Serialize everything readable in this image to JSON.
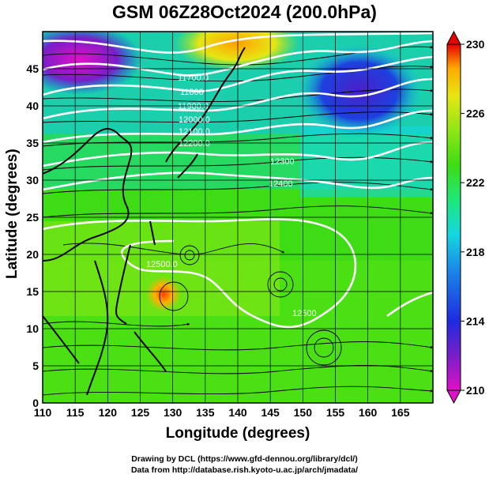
{
  "title": "GSM 06Z28Oct2024 (200.0hPa)",
  "xlabel": "Longitude (degrees)",
  "ylabel": "Latitude  (degrees)",
  "credits": [
    "Drawing by DCL (https://www.gfd-dennou.org/library/dcl/)",
    "Data from http://database.rish.kyoto-u.ac.jp/arch/jmadata/"
  ],
  "x_ticks": [
    "110",
    "115",
    "120",
    "125",
    "130",
    "135",
    "140",
    "145",
    "150",
    "155",
    "160",
    "165"
  ],
  "y_ticks": [
    "0",
    "5",
    "10",
    "15",
    "20",
    "25",
    "30",
    "35",
    "40",
    "45"
  ],
  "colorbar": {
    "ticks": [
      "210",
      "214",
      "218",
      "222",
      "226",
      "230"
    ],
    "range": [
      210,
      230
    ],
    "colors": [
      "#d400d4",
      "#6a22c8",
      "#1e2be0",
      "#1a7ce8",
      "#14d7e0",
      "#1ee87a",
      "#3ddc14",
      "#8ee614",
      "#e6e614",
      "#ffaa00",
      "#ff3c00",
      "#e60000"
    ]
  },
  "contour_labels": [
    "11700.0",
    "11800",
    "11900.0",
    "12000.0",
    "12100.0",
    "12200.0",
    "12300",
    "12400",
    "12500.0",
    "12500"
  ],
  "map": {
    "type": "heatmap",
    "x_range": [
      110,
      170
    ],
    "y_range": [
      0,
      50
    ],
    "value_range": [
      210,
      230
    ],
    "features": [
      "temperature color shading",
      "geopotential height contours (white)",
      "wind streamlines (black)",
      "coastlines (black)"
    ]
  }
}
